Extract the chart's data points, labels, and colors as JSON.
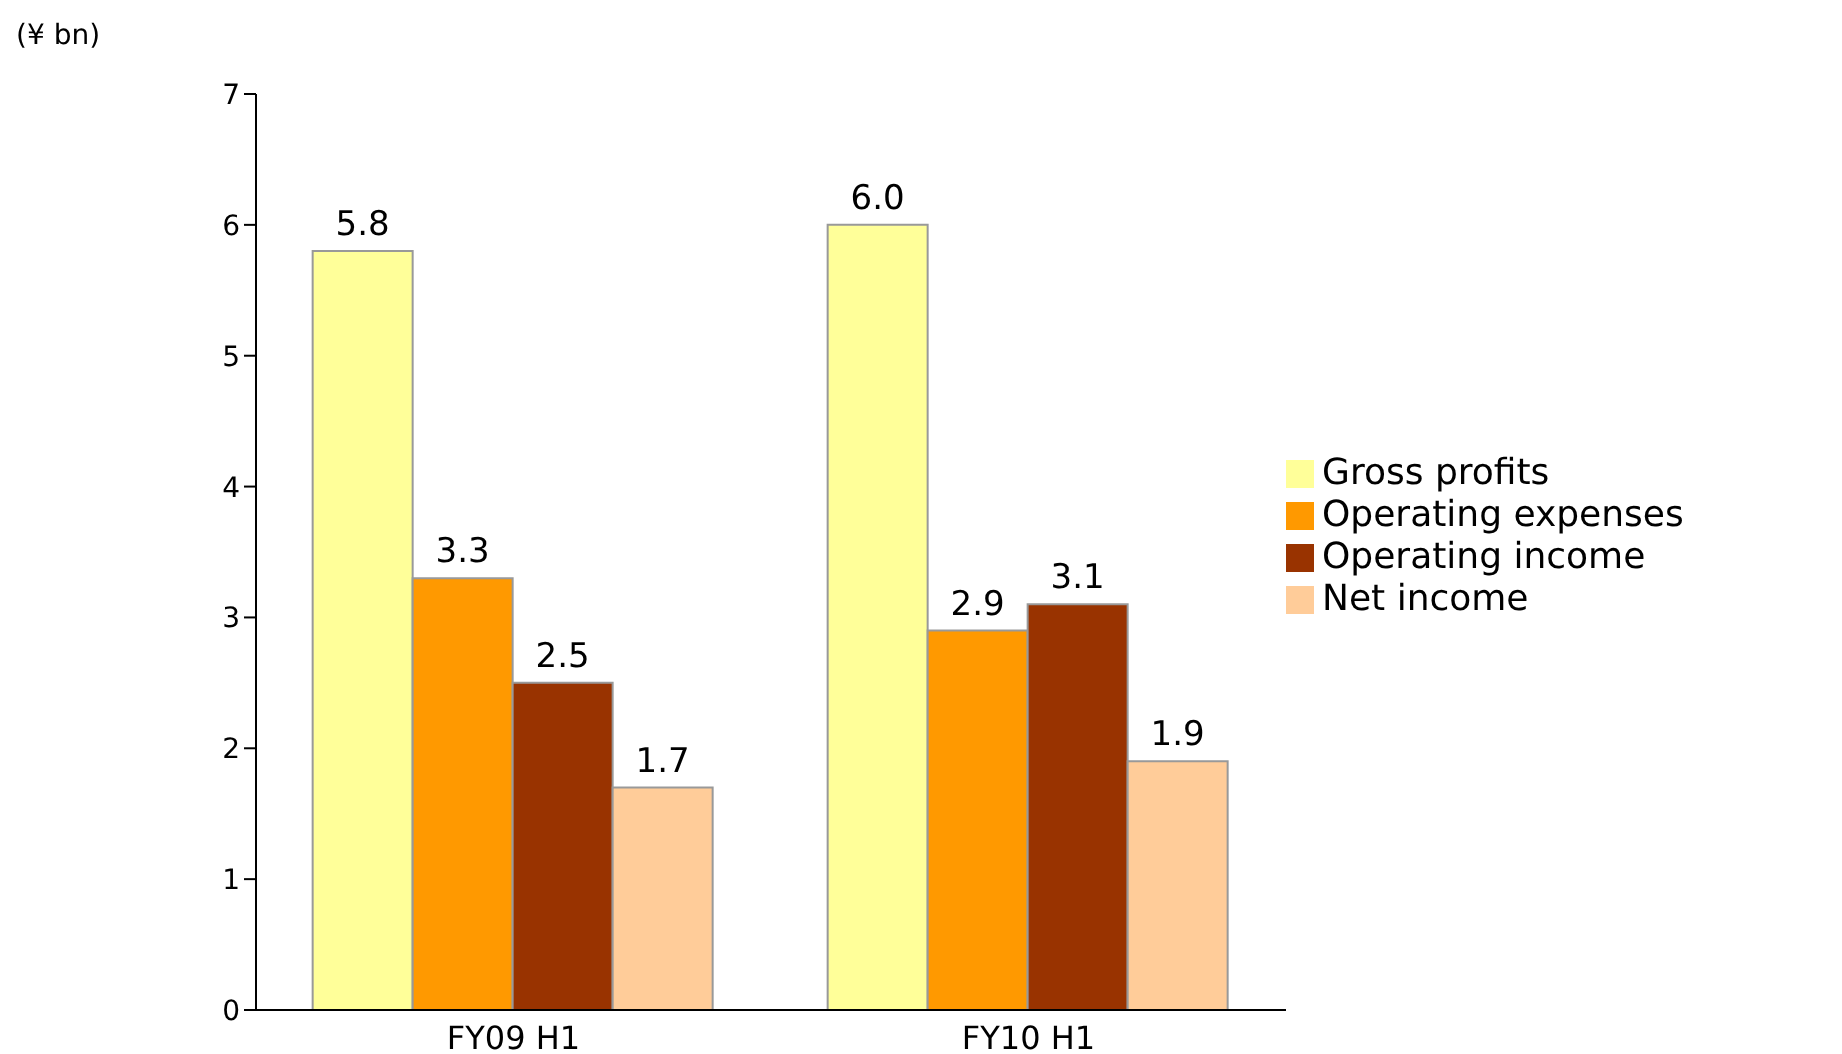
{
  "chart_data": {
    "type": "bar",
    "ylabel": "(¥ bn)",
    "categories": [
      "FY09 H1",
      "FY10 H1"
    ],
    "series": [
      {
        "name": "Gross profits",
        "color": "#ffff99",
        "values": [
          5.8,
          6.0
        ],
        "value_labels": [
          "5.8",
          "6.0"
        ]
      },
      {
        "name": "Operating expenses",
        "color": "#ff9900",
        "values": [
          3.3,
          2.9
        ],
        "value_labels": [
          "3.3",
          "2.9"
        ]
      },
      {
        "name": "Operating income",
        "color": "#993300",
        "values": [
          2.5,
          3.1
        ],
        "value_labels": [
          "2.5",
          "3.1"
        ]
      },
      {
        "name": "Net income",
        "color": "#ffcc99",
        "values": [
          1.7,
          1.9
        ],
        "value_labels": [
          "1.7",
          "1.9"
        ]
      }
    ],
    "ylim": [
      0,
      7
    ],
    "yticks": [
      0,
      1,
      2,
      3,
      4,
      5,
      6,
      7
    ],
    "grid": false,
    "legend": "right"
  }
}
